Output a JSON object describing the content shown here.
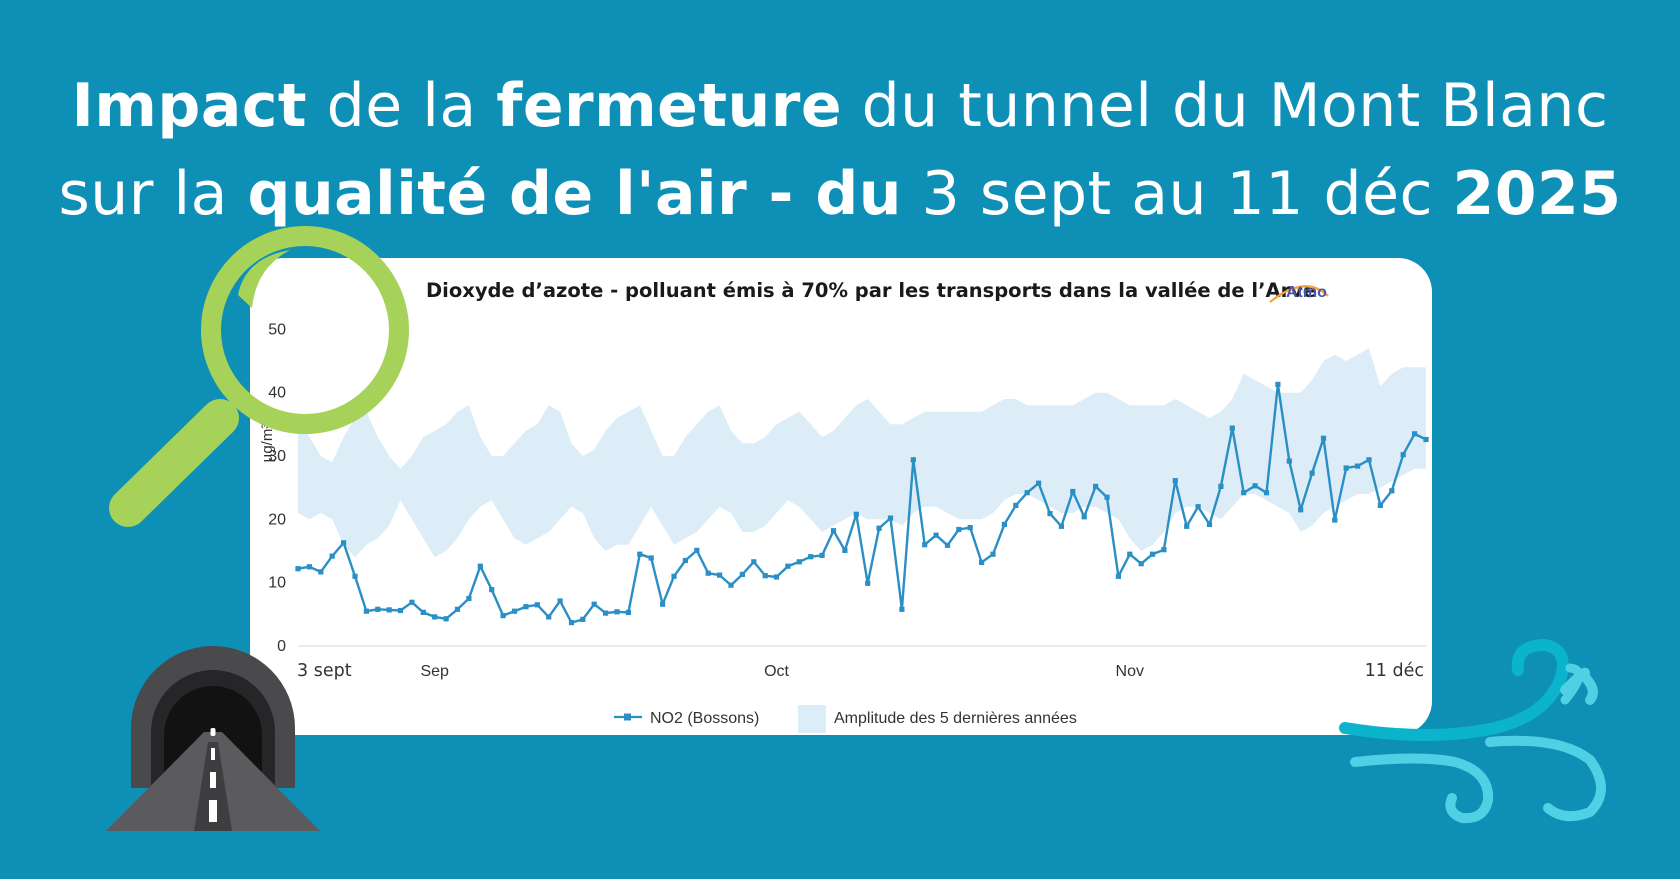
{
  "headline": {
    "line1": [
      {
        "text": "Impact",
        "bold": true
      },
      {
        "text": " de la ",
        "bold": false
      },
      {
        "text": "fermeture",
        "bold": true
      },
      {
        "text": " du tunnel du Mont Blanc",
        "bold": false
      }
    ],
    "line2": [
      {
        "text": "sur la ",
        "bold": false
      },
      {
        "text": "qualité de l'air - du",
        "bold": true
      },
      {
        "text": " 3 sept au 11 déc ",
        "bold": false
      },
      {
        "text": "2025",
        "bold": true
      }
    ]
  },
  "logo": {
    "text": "Atmo"
  },
  "colors": {
    "background": "#0d8fb6",
    "series": "#2a8fc4",
    "band": "#dcedf8",
    "magnifier": "#a6d25a",
    "wind": "#48c6e0"
  },
  "icons": [
    "magnifier-icon",
    "tunnel-icon",
    "wind-icon"
  ],
  "chart_data": {
    "type": "line",
    "title": "Dioxyde d’azote - polluant émis à 70% par les transports dans la vallée de l’Arve",
    "ylabel": "µg/m³",
    "ylim": [
      0,
      60
    ],
    "yticks": [
      0,
      10,
      20,
      30,
      40,
      50
    ],
    "xlim": [
      "2025-09-03",
      "2025-12-11"
    ],
    "xticks": [
      {
        "date": "2025-09-03",
        "label": "3 sept"
      },
      {
        "date": "2025-09-15",
        "label": "Sep"
      },
      {
        "date": "2025-10-15",
        "label": "Oct"
      },
      {
        "date": "2025-11-15",
        "label": "Nov"
      },
      {
        "date": "2025-12-11",
        "label": "11 déc"
      }
    ],
    "legend_position": "bottom",
    "grid": false,
    "series": [
      {
        "name": "NO2 (Bossons)",
        "type": "line",
        "start_date": "2025-09-03",
        "values": [
          12.2,
          12.5,
          11.7,
          14.2,
          16.3,
          11.0,
          5.5,
          5.8,
          5.7,
          5.6,
          6.9,
          5.3,
          4.6,
          4.3,
          5.8,
          7.5,
          12.6,
          8.9,
          4.8,
          5.5,
          6.2,
          6.5,
          4.6,
          7.1,
          3.7,
          4.2,
          6.6,
          5.2,
          5.4,
          5.3,
          14.5,
          13.9,
          6.6,
          11.0,
          13.5,
          15.1,
          11.5,
          11.2,
          9.6,
          11.3,
          13.3,
          11.1,
          10.9,
          12.6,
          13.3,
          14.1,
          14.3,
          18.2,
          15.1,
          20.8,
          9.9,
          18.6,
          20.2,
          5.8,
          29.4,
          16.0,
          17.5,
          15.9,
          18.4,
          18.7,
          13.2,
          14.5,
          19.2,
          22.2,
          24.2,
          25.7,
          20.9,
          18.9,
          24.4,
          20.4,
          25.2,
          23.5,
          11.0,
          14.5,
          13.0,
          14.5,
          15.2,
          26.1,
          18.9,
          22.0,
          19.2,
          25.2,
          34.4,
          24.2,
          25.3,
          24.2,
          41.3,
          29.2,
          21.5,
          27.3,
          32.8,
          19.9,
          28.1,
          28.4,
          29.4,
          22.2,
          24.5,
          30.2,
          33.5,
          32.6
        ]
      },
      {
        "name": "Amplitude des 5 dernières années",
        "type": "area",
        "start_date": "2025-09-03",
        "low": [
          21,
          20,
          21,
          20,
          16,
          14,
          16,
          17,
          19,
          23,
          20,
          17,
          14,
          15,
          17,
          20,
          22,
          23,
          20,
          17,
          16,
          17,
          18,
          20,
          22,
          21,
          17,
          15,
          16,
          16,
          19,
          22,
          19,
          16,
          17,
          18,
          20,
          22,
          21,
          18,
          18,
          19,
          21,
          23,
          22,
          20,
          18,
          19,
          20,
          21,
          20,
          20,
          20,
          19,
          21,
          22,
          22,
          21,
          20,
          20,
          20,
          21,
          23,
          24,
          24,
          23,
          22,
          21,
          21,
          22,
          22,
          21,
          20,
          17,
          15,
          16,
          18,
          21,
          22,
          22,
          21,
          20,
          22,
          24,
          24,
          23,
          22,
          21,
          18,
          19,
          21,
          22,
          23,
          24,
          24,
          25,
          26,
          27,
          28,
          28
        ],
        "high": [
          36,
          33,
          30,
          29,
          33,
          36,
          37,
          33,
          30,
          28,
          30,
          33,
          34,
          35,
          37,
          38,
          33,
          30,
          30,
          32,
          34,
          35,
          38,
          37,
          32,
          30,
          31,
          34,
          36,
          37,
          38,
          34,
          30,
          30,
          33,
          35,
          37,
          38,
          34,
          32,
          32,
          33,
          35,
          36,
          37,
          35,
          33,
          34,
          36,
          38,
          39,
          37,
          35,
          35,
          36,
          37,
          37,
          37,
          37,
          37,
          37,
          38,
          39,
          39,
          38,
          38,
          38,
          38,
          38,
          39,
          40,
          40,
          39,
          38,
          38,
          38,
          38,
          39,
          38,
          37,
          36,
          37,
          39,
          43,
          42,
          41,
          40,
          40,
          40,
          42,
          45,
          46,
          45,
          46,
          47,
          41,
          43,
          44,
          44,
          44
        ]
      }
    ]
  }
}
